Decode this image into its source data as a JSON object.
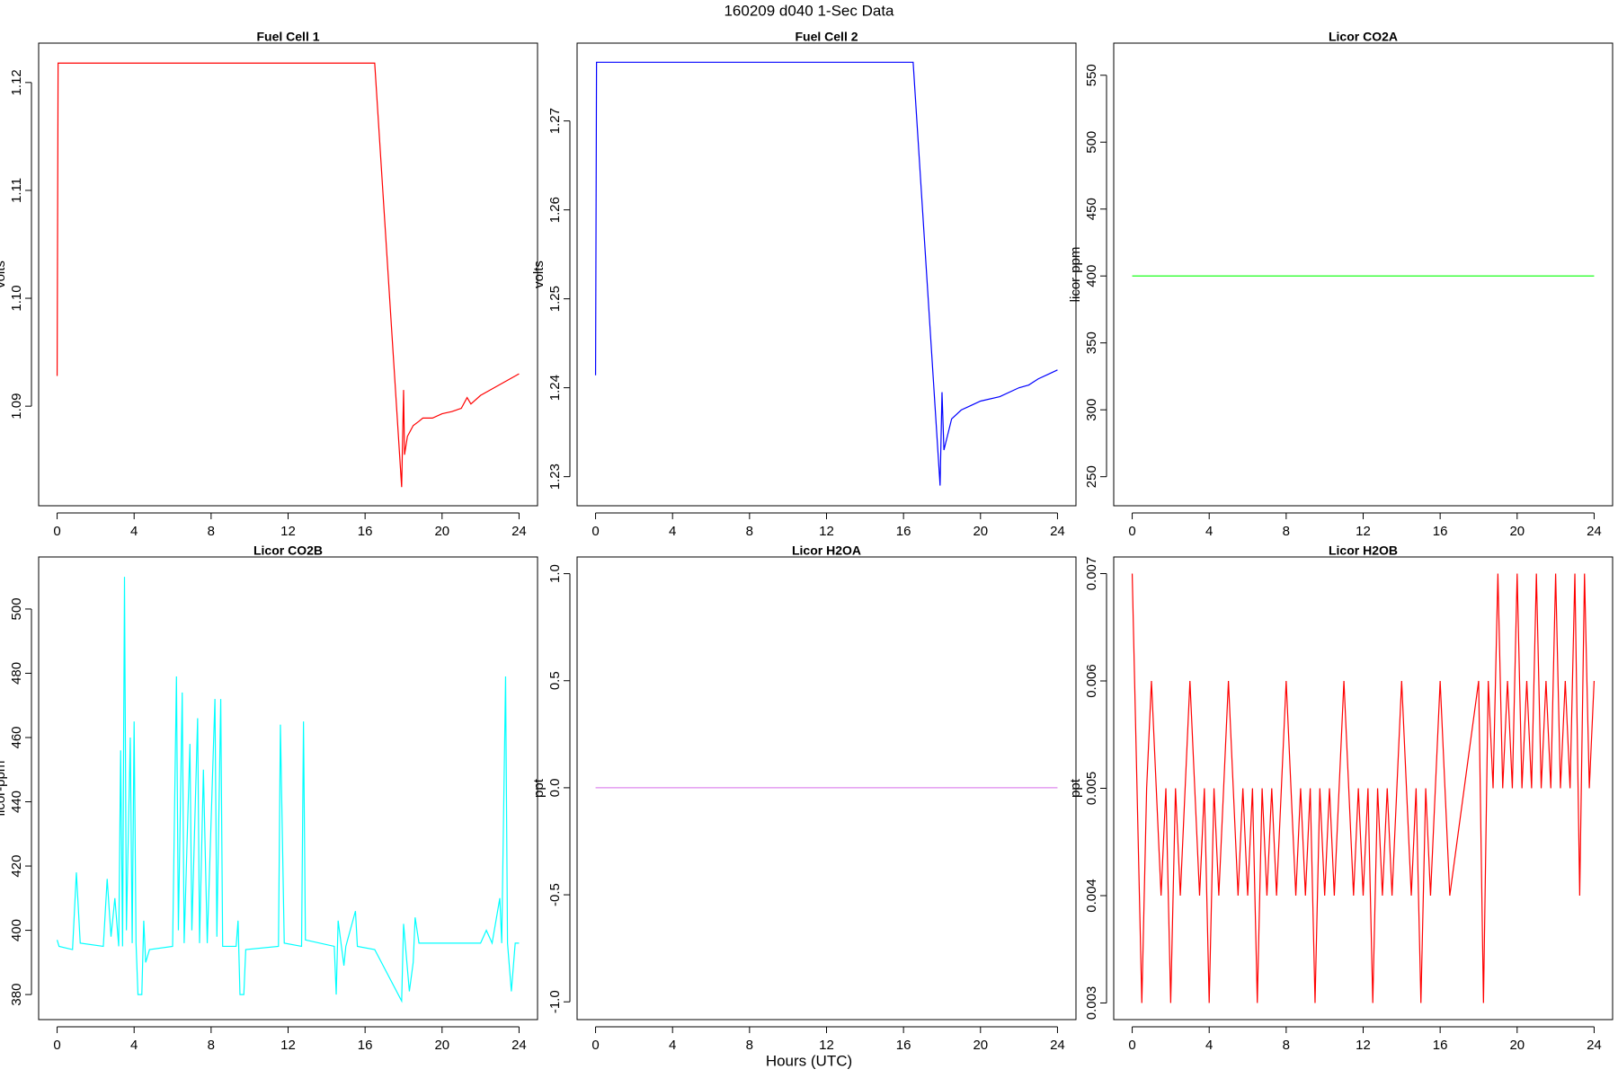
{
  "title": "160209   d040   1-Sec Data",
  "x_label": "Hours (UTC)",
  "chart_data": [
    {
      "type": "line",
      "title": "Fuel Cell 1",
      "y_label": "volts",
      "color": "#ff0000",
      "x": [
        0,
        0.05,
        16.5,
        17.9,
        18.0,
        18.05,
        18.2,
        18.5,
        18.8,
        19,
        19.5,
        20,
        20.5,
        21,
        21.3,
        21.5,
        22,
        22.5,
        23,
        23.5,
        24
      ],
      "values": [
        1.0928,
        1.1218,
        1.1218,
        1.0825,
        1.0915,
        1.0855,
        1.0872,
        1.0882,
        1.0886,
        1.0889,
        1.0889,
        1.0893,
        1.0895,
        1.0898,
        1.0908,
        1.0902,
        1.091,
        1.0915,
        1.092,
        1.0925,
        1.093
      ],
      "xlim": [
        -0.96,
        24.96
      ],
      "xticks": [
        0,
        4,
        8,
        12,
        16,
        20,
        24
      ],
      "ylim": [
        1.08077,
        1.12365
      ],
      "yticks": [
        1.09,
        {
          "value": 1.1,
          "label": "1.10"
        },
        1.11,
        1.12
      ]
    },
    {
      "type": "line",
      "title": "Fuel Cell 2",
      "y_label": "volts",
      "color": "#0000ff",
      "x": [
        0,
        0.05,
        16.5,
        17.9,
        18.0,
        18.1,
        18.5,
        19,
        19.5,
        20,
        21,
        22,
        22.5,
        23,
        23.5,
        24
      ],
      "values": [
        1.2414,
        1.2766,
        1.2766,
        1.229,
        1.2395,
        1.233,
        1.2365,
        1.2375,
        1.238,
        1.2385,
        1.239,
        1.24,
        1.2403,
        1.241,
        1.2415,
        1.242
      ],
      "xlim": [
        -0.96,
        24.96
      ],
      "xticks": [
        0,
        4,
        8,
        12,
        16,
        20,
        24
      ],
      "ylim": [
        1.22673,
        1.27875
      ],
      "yticks": [
        1.23,
        1.24,
        1.25,
        1.26,
        1.27
      ]
    },
    {
      "type": "line",
      "title": "Licor CO2A",
      "y_label": "licor-ppm",
      "color": "#00ff00",
      "x": [
        0,
        24
      ],
      "values": [
        400,
        400
      ],
      "xlim": [
        -0.96,
        24.96
      ],
      "xticks": [
        0,
        4,
        8,
        12,
        16,
        20,
        24
      ],
      "ylim": [
        228.3,
        574
      ],
      "yticks": [
        250,
        300,
        350,
        400,
        450,
        500,
        550
      ]
    },
    {
      "type": "line",
      "title": "Licor CO2B",
      "y_label": "licor-ppm",
      "color": "#00ffff",
      "x": [
        0,
        0.1,
        0.8,
        1,
        1.2,
        2.4,
        2.6,
        2.8,
        3.0,
        3.2,
        3.3,
        3.4,
        3.5,
        3.6,
        3.8,
        3.9,
        4.0,
        4.1,
        4.2,
        4.4,
        4.5,
        4.6,
        4.8,
        6.0,
        6.2,
        6.3,
        6.5,
        6.6,
        6.9,
        7.0,
        7.3,
        7.4,
        7.6,
        7.8,
        8.2,
        8.3,
        8.5,
        8.6,
        9.3,
        9.4,
        9.5,
        9.7,
        9.8,
        11.5,
        11.6,
        11.8,
        12.7,
        12.8,
        12.9,
        14.4,
        14.5,
        14.6,
        14.9,
        15.0,
        15.5,
        15.6,
        16.5,
        17.9,
        18.0,
        18.3,
        18.5,
        18.6,
        18.8,
        22,
        22.3,
        22.6,
        23.0,
        23.1,
        23.3,
        23.4,
        23.6,
        23.8,
        24
      ],
      "values": [
        397,
        395,
        394,
        418,
        396,
        395,
        416,
        398,
        410,
        395,
        456,
        395,
        510,
        400,
        460,
        396,
        465,
        396,
        380,
        380,
        403,
        390,
        394,
        395,
        479,
        400,
        474,
        396,
        458,
        400,
        466,
        396,
        450,
        396,
        472,
        398,
        472,
        395,
        395,
        403,
        380,
        380,
        394,
        395,
        464,
        396,
        395,
        465,
        397,
        395,
        380,
        403,
        389,
        395,
        406,
        395,
        394,
        378,
        402,
        381,
        390,
        404,
        396,
        396,
        400,
        396,
        410,
        396,
        479,
        396,
        381,
        396,
        396
      ],
      "xlim": [
        -0.96,
        24.96
      ],
      "xticks": [
        0,
        4,
        8,
        12,
        16,
        20,
        24
      ],
      "ylim": [
        372.2,
        516.2
      ],
      "yticks": [
        380,
        400,
        420,
        440,
        460,
        480,
        500
      ]
    },
    {
      "type": "line",
      "title": "Licor H2OA",
      "y_label": "ppt",
      "color": "#dd88ee",
      "x": [
        0,
        24
      ],
      "values": [
        0,
        0
      ],
      "xlim": [
        -0.96,
        24.96
      ],
      "xticks": [
        0,
        4,
        8,
        12,
        16,
        20,
        24
      ],
      "ylim": [
        -1.083,
        1.078
      ],
      "yticks": [
        {
          "value": -1,
          "label": "-1.0"
        },
        -0.5,
        {
          "value": 0,
          "label": "0.0"
        },
        0.5,
        {
          "value": 1,
          "label": "1.0"
        }
      ]
    },
    {
      "type": "line",
      "title": "Licor H2OB",
      "y_label": "ppt",
      "color": "#ff0000",
      "x": [
        0,
        0.25,
        0.5,
        0.75,
        1,
        1.25,
        1.5,
        1.75,
        2,
        2.25,
        2.5,
        2.75,
        3,
        3.25,
        3.5,
        3.75,
        4,
        4.25,
        4.5,
        4.75,
        5,
        5.25,
        5.5,
        5.75,
        6,
        6.25,
        6.5,
        6.75,
        7,
        7.25,
        7.5,
        7.75,
        8,
        8.25,
        8.5,
        8.75,
        9,
        9.25,
        9.5,
        9.75,
        10,
        10.25,
        10.5,
        10.75,
        11,
        11.25,
        11.5,
        11.75,
        12,
        12.25,
        12.5,
        12.75,
        13,
        13.25,
        13.5,
        13.75,
        14,
        14.25,
        14.5,
        14.75,
        15,
        15.25,
        15.5,
        15.75,
        16,
        16.25,
        16.5,
        18,
        18.25,
        18.5,
        18.75,
        19,
        19.25,
        19.5,
        19.75,
        20,
        20.25,
        20.5,
        20.75,
        21,
        21.25,
        21.5,
        21.75,
        22,
        22.25,
        22.5,
        22.75,
        23,
        23.25,
        23.5,
        23.75,
        24
      ],
      "values": [
        0.007,
        0.005,
        0.003,
        0.005,
        0.006,
        0.005,
        0.004,
        0.005,
        0.003,
        0.005,
        0.004,
        0.005,
        0.006,
        0.005,
        0.004,
        0.005,
        0.003,
        0.005,
        0.004,
        0.005,
        0.006,
        0.005,
        0.004,
        0.005,
        0.004,
        0.005,
        0.003,
        0.005,
        0.004,
        0.005,
        0.004,
        0.005,
        0.006,
        0.005,
        0.004,
        0.005,
        0.004,
        0.005,
        0.003,
        0.005,
        0.004,
        0.005,
        0.004,
        0.005,
        0.006,
        0.005,
        0.004,
        0.005,
        0.004,
        0.005,
        0.003,
        0.005,
        0.004,
        0.005,
        0.004,
        0.005,
        0.006,
        0.005,
        0.004,
        0.005,
        0.003,
        0.005,
        0.004,
        0.005,
        0.006,
        0.005,
        0.004,
        0.006,
        0.003,
        0.006,
        0.005,
        0.007,
        0.005,
        0.006,
        0.005,
        0.007,
        0.005,
        0.006,
        0.005,
        0.007,
        0.005,
        0.006,
        0.005,
        0.007,
        0.005,
        0.006,
        0.005,
        0.007,
        0.004,
        0.007,
        0.005,
        0.006
      ],
      "xlim": [
        -0.96,
        24.96
      ],
      "xticks": [
        0,
        4,
        8,
        12,
        16,
        20,
        24
      ],
      "ylim": [
        0.002845,
        0.007155
      ],
      "yticks": [
        0.003,
        0.004,
        0.005,
        0.006,
        0.007
      ]
    }
  ]
}
